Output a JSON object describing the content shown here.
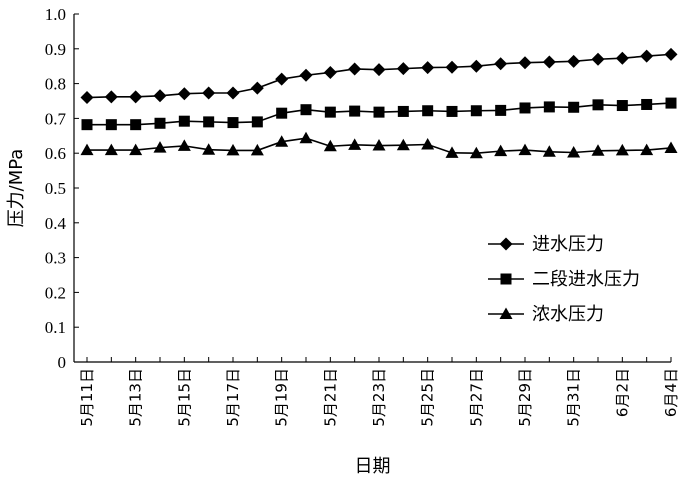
{
  "chart_data": {
    "type": "line",
    "xlabel": "日期",
    "ylabel": "压力/MPa",
    "ylim": [
      0,
      1.0
    ],
    "yticks": [
      "0",
      "0.1",
      "0.2",
      "0.3",
      "0.4",
      "0.5",
      "0.6",
      "0.7",
      "0.8",
      "0.9",
      "1.0"
    ],
    "x_ticks": [
      "5月11日",
      "5月13日",
      "5月15日",
      "5月17日",
      "5月19日",
      "5月21日",
      "5月23日",
      "5月25日",
      "5月27日",
      "5月29日",
      "5月31日",
      "6月2日",
      "6月4日"
    ],
    "x": [
      "5月11日",
      "5月12日",
      "5月13日",
      "5月14日",
      "5月15日",
      "5月16日",
      "5月17日",
      "5月18日",
      "5月19日",
      "5月20日",
      "5月21日",
      "5月22日",
      "5月23日",
      "5月24日",
      "5月25日",
      "5月26日",
      "5月27日",
      "5月28日",
      "5月29日",
      "5月30日",
      "5月31日",
      "6月1日",
      "6月2日",
      "6月3日",
      "6月4日"
    ],
    "legend_position": "center-right",
    "series": [
      {
        "name": "进水压力",
        "marker": "diamond",
        "values": [
          0.76,
          0.762,
          0.762,
          0.765,
          0.771,
          0.773,
          0.773,
          0.787,
          0.813,
          0.824,
          0.832,
          0.842,
          0.84,
          0.843,
          0.846,
          0.847,
          0.85,
          0.857,
          0.86,
          0.862,
          0.864,
          0.87,
          0.873,
          0.879,
          0.884
        ]
      },
      {
        "name": "二段进水压力",
        "marker": "square",
        "values": [
          0.682,
          0.682,
          0.682,
          0.686,
          0.692,
          0.69,
          0.688,
          0.69,
          0.715,
          0.725,
          0.718,
          0.721,
          0.718,
          0.72,
          0.722,
          0.72,
          0.722,
          0.723,
          0.73,
          0.733,
          0.732,
          0.739,
          0.737,
          0.74,
          0.744
        ]
      },
      {
        "name": "浓水压力",
        "marker": "triangle",
        "values": [
          0.609,
          0.609,
          0.609,
          0.616,
          0.621,
          0.61,
          0.608,
          0.608,
          0.633,
          0.643,
          0.62,
          0.624,
          0.622,
          0.623,
          0.625,
          0.601,
          0.6,
          0.606,
          0.609,
          0.604,
          0.602,
          0.607,
          0.608,
          0.609,
          0.615
        ]
      }
    ]
  },
  "colors": {
    "line": "#000000",
    "background": "#ffffff"
  }
}
